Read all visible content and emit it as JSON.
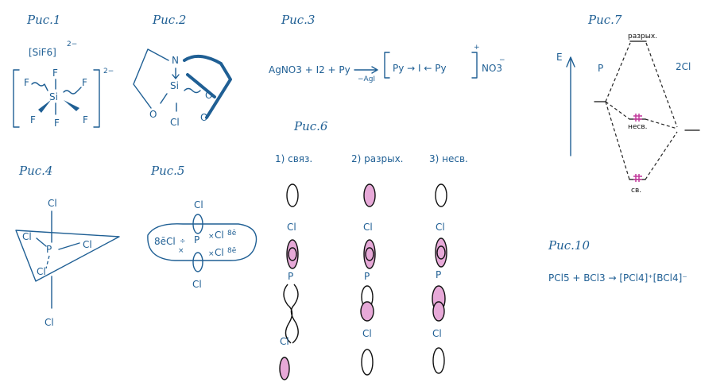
{
  "figures": {
    "fig1": {
      "caption": "Рис.1",
      "formula": "[SiF6]",
      "charge": "2−",
      "bracket_charge": "2−",
      "atoms": {
        "center": "Si",
        "f_top": "F",
        "f_left": "F",
        "f_right": "F",
        "f_bl": "F",
        "f_bc": "F",
        "f_br": "F"
      }
    },
    "fig2": {
      "caption": "Рис.2",
      "atoms": {
        "n": "N",
        "si": "Si",
        "o1": "O",
        "o2": "O",
        "o3": "O",
        "cl": "Cl"
      }
    },
    "fig3": {
      "caption": "Рис.3",
      "equation_left": "AgNO3 + I2 + Py",
      "arrow_sub": "−AgI",
      "complex": "Py → I ← Py",
      "charge": "+",
      "anion": "NO3",
      "anion_charge": "−"
    },
    "fig4": {
      "caption": "Рис.4",
      "atoms": {
        "cl_top": "Cl",
        "cl_left": "Cl",
        "cl_right": "Cl",
        "p": "P",
        "cl_mid": "Cl",
        "cl_bottom": "Cl"
      }
    },
    "fig5": {
      "caption": "Рис.5",
      "atoms": {
        "cl_top": "Cl",
        "left": "8ēCl",
        "p": "P",
        "right1": "Cl",
        "right1_e": "8ē",
        "right2": "Cl",
        "right2_e": "8ē",
        "cl_bottom": "Cl"
      }
    },
    "fig6": {
      "caption": "Рис.6",
      "col1": "1) связ.",
      "col2": "2) разрых.",
      "col3": "3) несв.",
      "atoms": {
        "cl": "Cl",
        "p": "P"
      }
    },
    "fig7": {
      "caption": "Рис.7",
      "axis": "E",
      "left": "P",
      "right": "2Cl",
      "level_top": "разрых.",
      "level_mid": "несв.",
      "level_bottom": "св."
    },
    "fig10": {
      "caption": "Рис.10",
      "equation": "PCl5 + BCl3 → [PCl4]⁺[BCl4]⁻"
    }
  }
}
